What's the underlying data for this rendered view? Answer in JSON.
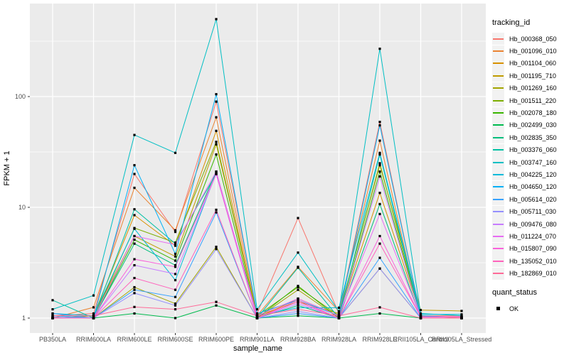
{
  "chart_data": {
    "type": "line",
    "title": "",
    "xlabel": "sample_name",
    "ylabel": "FPKM + 1",
    "y_scale": "log10",
    "y_ticks": [
      1,
      10,
      100
    ],
    "y_minor_ticks": [
      3.162,
      31.62,
      316.2
    ],
    "ylim": [
      0.93,
      560
    ],
    "grid": "on",
    "panel_bg": "#EBEBEB",
    "grid_color": "#FFFFFF",
    "tick_label_color": "#4D4D4D",
    "axis_title_color": "#000000",
    "point": {
      "shape": "filled-square",
      "color": "#000000",
      "size": 3.2
    },
    "legend_position": "right",
    "categories": [
      "PB350LA",
      "RRIM600LA",
      "RRIM600LE",
      "RRIM600SE",
      "RRIM600PE",
      "RRIM901LA",
      "RRIM928BA",
      "RRIM928LA",
      "RRIM928LE",
      "RRII105LA_Control",
      "RRII105LA_Stressed"
    ],
    "legend": {
      "color_title": "tracking_id",
      "shape_title": "quant_status",
      "shape_items": [
        {
          "label": "OK",
          "marker": "black-square"
        }
      ]
    },
    "series": [
      {
        "name": "Hb_000368_050",
        "color": "#F8766D",
        "values": [
          1.05,
          1.1,
          20,
          6.0,
          90,
          1.1,
          8.0,
          1.1,
          59,
          1.05,
          1.05
        ]
      },
      {
        "name": "Hb_001096_010",
        "color": "#EA8331",
        "values": [
          1.0,
          1.25,
          15,
          6.2,
          65,
          1.05,
          2.9,
          1.15,
          40,
          1.0,
          1.0
        ]
      },
      {
        "name": "Hb_001104_060",
        "color": "#D89000",
        "values": [
          1.0,
          1.05,
          8.5,
          4.5,
          49,
          1.0,
          1.5,
          1.05,
          13.5,
          1.05,
          1.0
        ]
      },
      {
        "name": "Hb_001195_710",
        "color": "#C09B00",
        "values": [
          1.0,
          1.05,
          5.5,
          3.6,
          37,
          1.05,
          1.4,
          1.1,
          24,
          1.18,
          1.16
        ]
      },
      {
        "name": "Hb_001269_160",
        "color": "#A3A500",
        "values": [
          1.0,
          1.0,
          1.9,
          1.35,
          4.4,
          1.0,
          1.8,
          1.0,
          2.8,
          1.0,
          1.0
        ]
      },
      {
        "name": "Hb_001511_220",
        "color": "#7CAE00",
        "values": [
          1.0,
          1.0,
          6.5,
          4.8,
          39,
          1.05,
          1.9,
          1.05,
          25,
          1.0,
          1.0
        ]
      },
      {
        "name": "Hb_002078_180",
        "color": "#39B600",
        "values": [
          1.0,
          1.0,
          5.1,
          3.3,
          30,
          1.0,
          1.95,
          1.0,
          21,
          1.0,
          1.0
        ]
      },
      {
        "name": "Hb_002499_030",
        "color": "#00BB4E",
        "values": [
          1.0,
          1.0,
          1.1,
          1.0,
          1.3,
          1.0,
          1.05,
          1.0,
          1.1,
          1.0,
          1.0
        ]
      },
      {
        "name": "Hb_002835_350",
        "color": "#00BF7D",
        "values": [
          1.0,
          1.0,
          4.7,
          3.0,
          21,
          1.0,
          1.3,
          1.0,
          10.7,
          1.0,
          1.0
        ]
      },
      {
        "name": "Hb_003376_060",
        "color": "#00C1A3",
        "values": [
          1.45,
          1.0,
          9.6,
          4.7,
          20,
          1.0,
          2.85,
          1.0,
          30,
          1.0,
          1.0
        ]
      },
      {
        "name": "Hb_003747_160",
        "color": "#00BFC4",
        "values": [
          1.2,
          1.6,
          45,
          31,
          500,
          1.2,
          3.9,
          1.15,
          270,
          1.1,
          1.05
        ]
      },
      {
        "name": "Hb_004225_120",
        "color": "#00BBDA",
        "values": [
          1.1,
          1.05,
          6.4,
          2.2,
          20.5,
          1.05,
          1.24,
          1.24,
          31,
          1.08,
          1.08
        ]
      },
      {
        "name": "Hb_004650_120",
        "color": "#00B0F6",
        "values": [
          1.05,
          1.0,
          24,
          3.8,
          105,
          1.1,
          1.45,
          1.05,
          55,
          1.05,
          1.02
        ]
      },
      {
        "name": "Hb_005614_020",
        "color": "#35A2FF",
        "values": [
          1.1,
          1.0,
          1.8,
          1.55,
          9.0,
          1.0,
          1.1,
          1.0,
          3.5,
          1.0,
          1.0
        ]
      },
      {
        "name": "Hb_005711_030",
        "color": "#9590FF",
        "values": [
          1.02,
          1.0,
          1.68,
          1.3,
          4.2,
          1.0,
          1.15,
          1.0,
          2.8,
          1.0,
          1.0
        ]
      },
      {
        "name": "Hb_009476_080",
        "color": "#C77CFF",
        "values": [
          1.0,
          1.0,
          3.0,
          2.5,
          20,
          1.0,
          1.35,
          1.0,
          19,
          1.0,
          1.0
        ]
      },
      {
        "name": "Hb_011224_070",
        "color": "#E76BF3",
        "values": [
          1.0,
          1.0,
          5.5,
          4.6,
          21,
          1.05,
          1.5,
          1.05,
          8.7,
          1.02,
          1.02
        ]
      },
      {
        "name": "Hb_015807_090",
        "color": "#FA62DB",
        "values": [
          1.0,
          1.0,
          3.4,
          2.9,
          20,
          1.0,
          1.4,
          1.0,
          5.5,
          1.02,
          1.02
        ]
      },
      {
        "name": "Hb_135052_010",
        "color": "#FF62BC",
        "values": [
          1.0,
          1.0,
          2.3,
          1.8,
          9.5,
          1.0,
          1.45,
          1.0,
          4.7,
          1.03,
          1.03
        ]
      },
      {
        "name": "Hb_182869_010",
        "color": "#FF6A98",
        "values": [
          1.05,
          1.05,
          1.26,
          1.2,
          1.4,
          1.05,
          1.2,
          1.05,
          1.25,
          1.0,
          1.0
        ]
      }
    ]
  }
}
